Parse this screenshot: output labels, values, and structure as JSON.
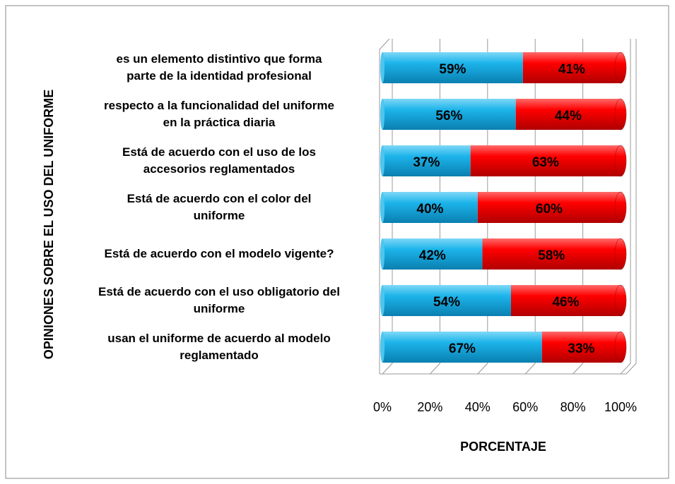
{
  "chart_data": {
    "type": "stacked_barh",
    "categories": [
      "es un elemento distintivo que forma\nparte de la identidad profesional",
      "respecto a la funcionalidad del uniforme\nen la práctica diaria",
      "Está de acuerdo con el uso de los\naccesorios reglamentados",
      "Está  de acuerdo con el color del\nuniforme",
      "Está de acuerdo con el modelo vigente?",
      "Está de acuerdo con el uso obligatorio del\nuniforme",
      "usan el uniforme de acuerdo al modelo\nreglamentado"
    ],
    "series": [
      {
        "color": "#1cb4ea",
        "values": [
          59,
          56,
          37,
          40,
          42,
          54,
          67
        ],
        "value_labels": [
          "59%",
          "56%",
          "37%",
          "40%",
          "42%",
          "54%",
          "67%"
        ]
      },
      {
        "color": "#ff0000",
        "values": [
          41,
          44,
          63,
          60,
          58,
          46,
          33
        ],
        "value_labels": [
          "41%",
          "44%",
          "63%",
          "60%",
          "58%",
          "46%",
          "33%"
        ]
      }
    ],
    "xlim": [
      0,
      100
    ],
    "xticks": [
      {
        "value": 0,
        "label": "0%"
      },
      {
        "value": 20,
        "label": "20%"
      },
      {
        "value": 40,
        "label": "40%"
      },
      {
        "value": 60,
        "label": "60%"
      },
      {
        "value": 80,
        "label": "80%"
      },
      {
        "value": 100,
        "label": "100%"
      }
    ],
    "xlabel": "PORCENTAJE",
    "ylabel": "OPINIONES SOBRE EL USO DEL UNIFORME",
    "grid": true
  }
}
